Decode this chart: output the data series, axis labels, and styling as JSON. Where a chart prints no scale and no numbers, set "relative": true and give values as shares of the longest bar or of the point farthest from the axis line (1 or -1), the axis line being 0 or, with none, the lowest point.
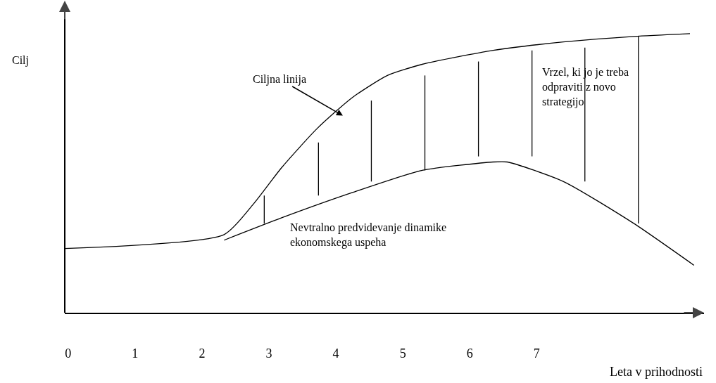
{
  "chart_data": {
    "type": "line",
    "relative": true,
    "xlabel": "Leta v prihodnosti",
    "ylabel": "Cilj",
    "xlim": [
      -0.05,
      9.5
    ],
    "xticks": [
      0,
      1,
      2,
      3,
      4,
      5,
      6,
      7
    ],
    "tick_labels": "x",
    "grid": false,
    "marker": "none",
    "line_style": "solid",
    "color": "#000000",
    "series": [
      {
        "x": [
          -0.05,
          2.33,
          2.77,
          3.19,
          3.72,
          4.24,
          4.77,
          5.29,
          6.35,
          7.4,
          8.45,
          9.29
        ],
        "values": [
          0.23,
          0.28,
          0.39,
          0.52,
          0.66,
          0.77,
          0.85,
          0.89,
          0.94,
          0.97,
          0.99,
          1.0
        ]
      },
      {
        "x": [
          2.33,
          3.19,
          4.24,
          5.29,
          6.35,
          6.56,
          7.4,
          8.45,
          9.35
        ],
        "values": [
          0.26,
          0.34,
          0.43,
          0.51,
          0.54,
          0.54,
          0.47,
          0.32,
          0.17
        ]
      },
      {
        "x": [
          2.93,
          2.93
        ],
        "values": [
          0.32,
          0.42
        ]
      },
      {
        "x": [
          3.74,
          3.74
        ],
        "values": [
          0.42,
          0.61
        ]
      },
      {
        "x": [
          4.53,
          4.53
        ],
        "values": [
          0.47,
          0.76
        ]
      },
      {
        "x": [
          5.33,
          5.33
        ],
        "values": [
          0.51,
          0.85
        ]
      },
      {
        "x": [
          6.13,
          6.13
        ],
        "values": [
          0.56,
          0.9
        ]
      },
      {
        "x": [
          6.93,
          6.93
        ],
        "values": [
          0.56,
          0.94
        ]
      },
      {
        "x": [
          7.72,
          7.72
        ],
        "values": [
          0.47,
          0.95
        ]
      },
      {
        "x": [
          8.52,
          8.52
        ],
        "values": [
          0.32,
          0.99
        ]
      }
    ],
    "annotations": [
      "Ciljna linija",
      "Vrzel, ki jo je treba odpraviti z novo strategijo",
      "Nevtralno predvidevanje dinamike ekonomskega uspeha"
    ]
  }
}
